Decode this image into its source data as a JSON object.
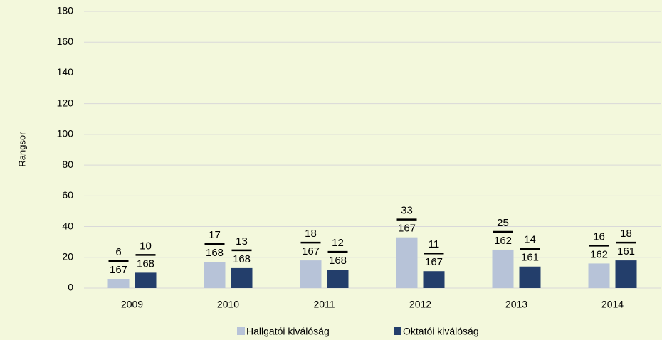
{
  "chart_data": {
    "type": "bar",
    "y_label": "Rangsor",
    "categories": [
      "2009",
      "2010",
      "2011",
      "2012",
      "2013",
      "2014"
    ],
    "series": [
      {
        "name": "Hallgatói kiválóság",
        "color": "#b7c3d8",
        "values": [
          6,
          17,
          18,
          33,
          25,
          16
        ],
        "totals": [
          167,
          168,
          167,
          167,
          162,
          162
        ]
      },
      {
        "name": "Oktatói kiválóság",
        "color": "#233e6b",
        "values": [
          10,
          13,
          12,
          11,
          14,
          18
        ],
        "totals": [
          168,
          168,
          168,
          167,
          161,
          161
        ]
      }
    ],
    "ylim": [
      0,
      180
    ],
    "yticks": [
      0,
      20,
      40,
      60,
      80,
      100,
      120,
      140,
      160,
      180
    ],
    "grid": true,
    "legend": "bottom"
  }
}
